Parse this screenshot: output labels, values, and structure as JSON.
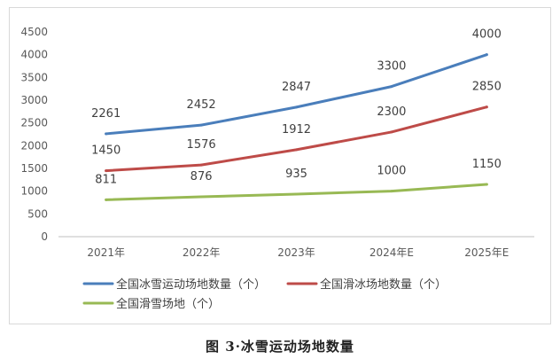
{
  "chart_data": {
    "type": "line",
    "categories": [
      "2021年",
      "2022年",
      "2023年",
      "2024年E",
      "2025年E"
    ],
    "ylim": [
      0,
      4500
    ],
    "yticks": [
      0,
      500,
      1000,
      1500,
      2000,
      2500,
      3000,
      3500,
      4000,
      4500
    ],
    "grid": false,
    "legend_position": "bottom",
    "series": [
      {
        "name": "全国冰雪运动场地数量（个）",
        "color": "#4a7ebb",
        "values": [
          2261,
          2452,
          2847,
          3300,
          4000
        ]
      },
      {
        "name": "全国滑冰场地数量（个）",
        "color": "#be4b48",
        "values": [
          1450,
          1576,
          1912,
          2300,
          2850
        ]
      },
      {
        "name": "全国滑雪场地（个）",
        "color": "#98b954",
        "values": [
          811,
          876,
          935,
          1000,
          1150
        ]
      }
    ]
  },
  "caption": "图 3·冰雪运动场地数量"
}
